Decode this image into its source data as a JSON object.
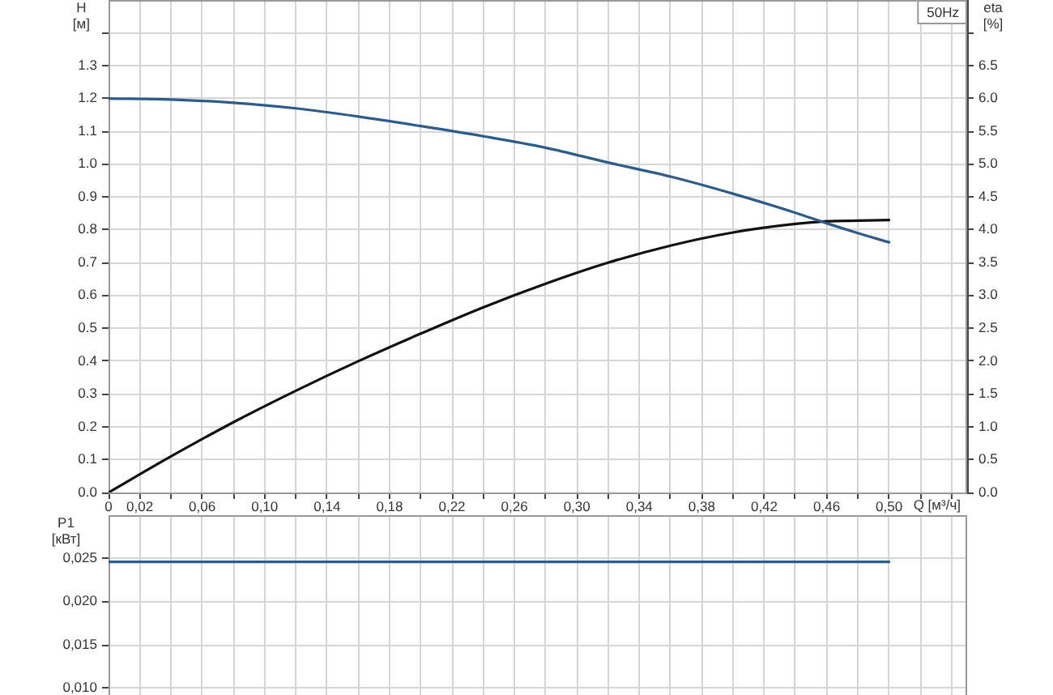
{
  "chart_data": [
    {
      "type": "line",
      "xlabel": "Q [м³/ч]",
      "ylabel": "H [м]",
      "y2label": "eta [%]",
      "annotations": [
        "50Hz"
      ],
      "x": [
        0,
        0.04,
        0.08,
        0.12,
        0.16,
        0.2,
        0.24,
        0.28,
        0.32,
        0.36,
        0.4,
        0.44,
        0.46,
        0.48,
        0.5
      ],
      "series": [
        {
          "color": "#2e5c8a",
          "values": [
            1.2,
            1.197,
            1.187,
            1.17,
            1.145,
            1.116,
            1.085,
            1.05,
            1.005,
            0.962,
            0.91,
            0.852,
            0.82,
            0.79,
            0.762
          ]
        },
        {
          "color": "#111111",
          "axis": "y2",
          "values": [
            0,
            0.55,
            1.07,
            1.55,
            2.0,
            2.42,
            2.82,
            3.18,
            3.5,
            3.76,
            3.96,
            4.09,
            4.13,
            4.14,
            4.15
          ]
        }
      ],
      "xlim": [
        0,
        0.55
      ],
      "xticks": [
        0,
        {
          "value": 0.02,
          "label": "0,02"
        },
        {
          "value": 0.04,
          "label": null
        },
        {
          "value": 0.06,
          "label": "0,06"
        },
        {
          "value": 0.08,
          "label": null
        },
        {
          "value": 0.1,
          "label": "0,10"
        },
        {
          "value": 0.12,
          "label": null
        },
        {
          "value": 0.14,
          "label": "0,14"
        },
        {
          "value": 0.16,
          "label": null
        },
        {
          "value": 0.18,
          "label": "0,18"
        },
        {
          "value": 0.2,
          "label": null
        },
        {
          "value": 0.22,
          "label": "0,22"
        },
        {
          "value": 0.24,
          "label": null
        },
        {
          "value": 0.26,
          "label": "0,26"
        },
        {
          "value": 0.28,
          "label": null
        },
        {
          "value": 0.3,
          "label": "0,30"
        },
        {
          "value": 0.32,
          "label": null
        },
        {
          "value": 0.34,
          "label": "0,34"
        },
        {
          "value": 0.36,
          "label": null
        },
        {
          "value": 0.38,
          "label": "0,38"
        },
        {
          "value": 0.4,
          "label": null
        },
        {
          "value": 0.42,
          "label": "0,42"
        },
        {
          "value": 0.44,
          "label": null
        },
        {
          "value": 0.46,
          "label": "0,46"
        },
        {
          "value": 0.48,
          "label": null
        },
        {
          "value": 0.5,
          "label": "0,50"
        },
        {
          "value": 0.52,
          "label": null
        },
        {
          "value": 0.54,
          "label": null
        }
      ],
      "ylim": [
        0,
        1.5
      ],
      "yticks": [
        {
          "value": 0,
          "label": "0.0"
        },
        0.1,
        0.2,
        0.3,
        0.4,
        0.5,
        0.6,
        0.7,
        0.8,
        0.9,
        {
          "value": 1,
          "label": "1.0"
        },
        1.1,
        1.2,
        1.3,
        {
          "value": 1.4,
          "label": null
        }
      ],
      "y2lim": [
        0,
        7.5
      ],
      "y2ticks": [
        {
          "value": 0,
          "label": "0.0"
        },
        0.5,
        {
          "value": 1,
          "label": "1.0"
        },
        1.5,
        {
          "value": 2,
          "label": "2.0"
        },
        2.5,
        {
          "value": 3,
          "label": "3.0"
        },
        3.5,
        {
          "value": 4,
          "label": "4.0"
        },
        4.5,
        {
          "value": 5,
          "label": "5.0"
        },
        5.5,
        {
          "value": 6,
          "label": "6.0"
        },
        6.5,
        {
          "value": 7,
          "label": null
        }
      ],
      "grid": true
    },
    {
      "type": "line",
      "ylabel": "P1 [кВт]",
      "x": [
        0,
        0.5
      ],
      "series": [
        {
          "color": "#2e5c8a",
          "values": [
            0.0246,
            0.0246
          ]
        }
      ],
      "xlim": [
        0,
        0.55
      ],
      "xticks": [
        0,
        0.02,
        0.04,
        0.06,
        0.08,
        0.1,
        0.12,
        0.14,
        0.16,
        0.18,
        0.2,
        0.22,
        0.24,
        0.26,
        0.28,
        0.3,
        0.32,
        0.34,
        0.36,
        0.38,
        0.4,
        0.42,
        0.44,
        0.46,
        0.48,
        0.5,
        0.52,
        0.54
      ],
      "ylim": [
        0.0092,
        0.03
      ],
      "yticks": [
        {
          "value": 0.01,
          "label": "0,010"
        },
        {
          "value": 0.015,
          "label": "0,015"
        },
        {
          "value": 0.02,
          "label": "0,020"
        },
        {
          "value": 0.025,
          "label": "0,025"
        }
      ],
      "grid": true,
      "tick_labels": "y"
    }
  ]
}
